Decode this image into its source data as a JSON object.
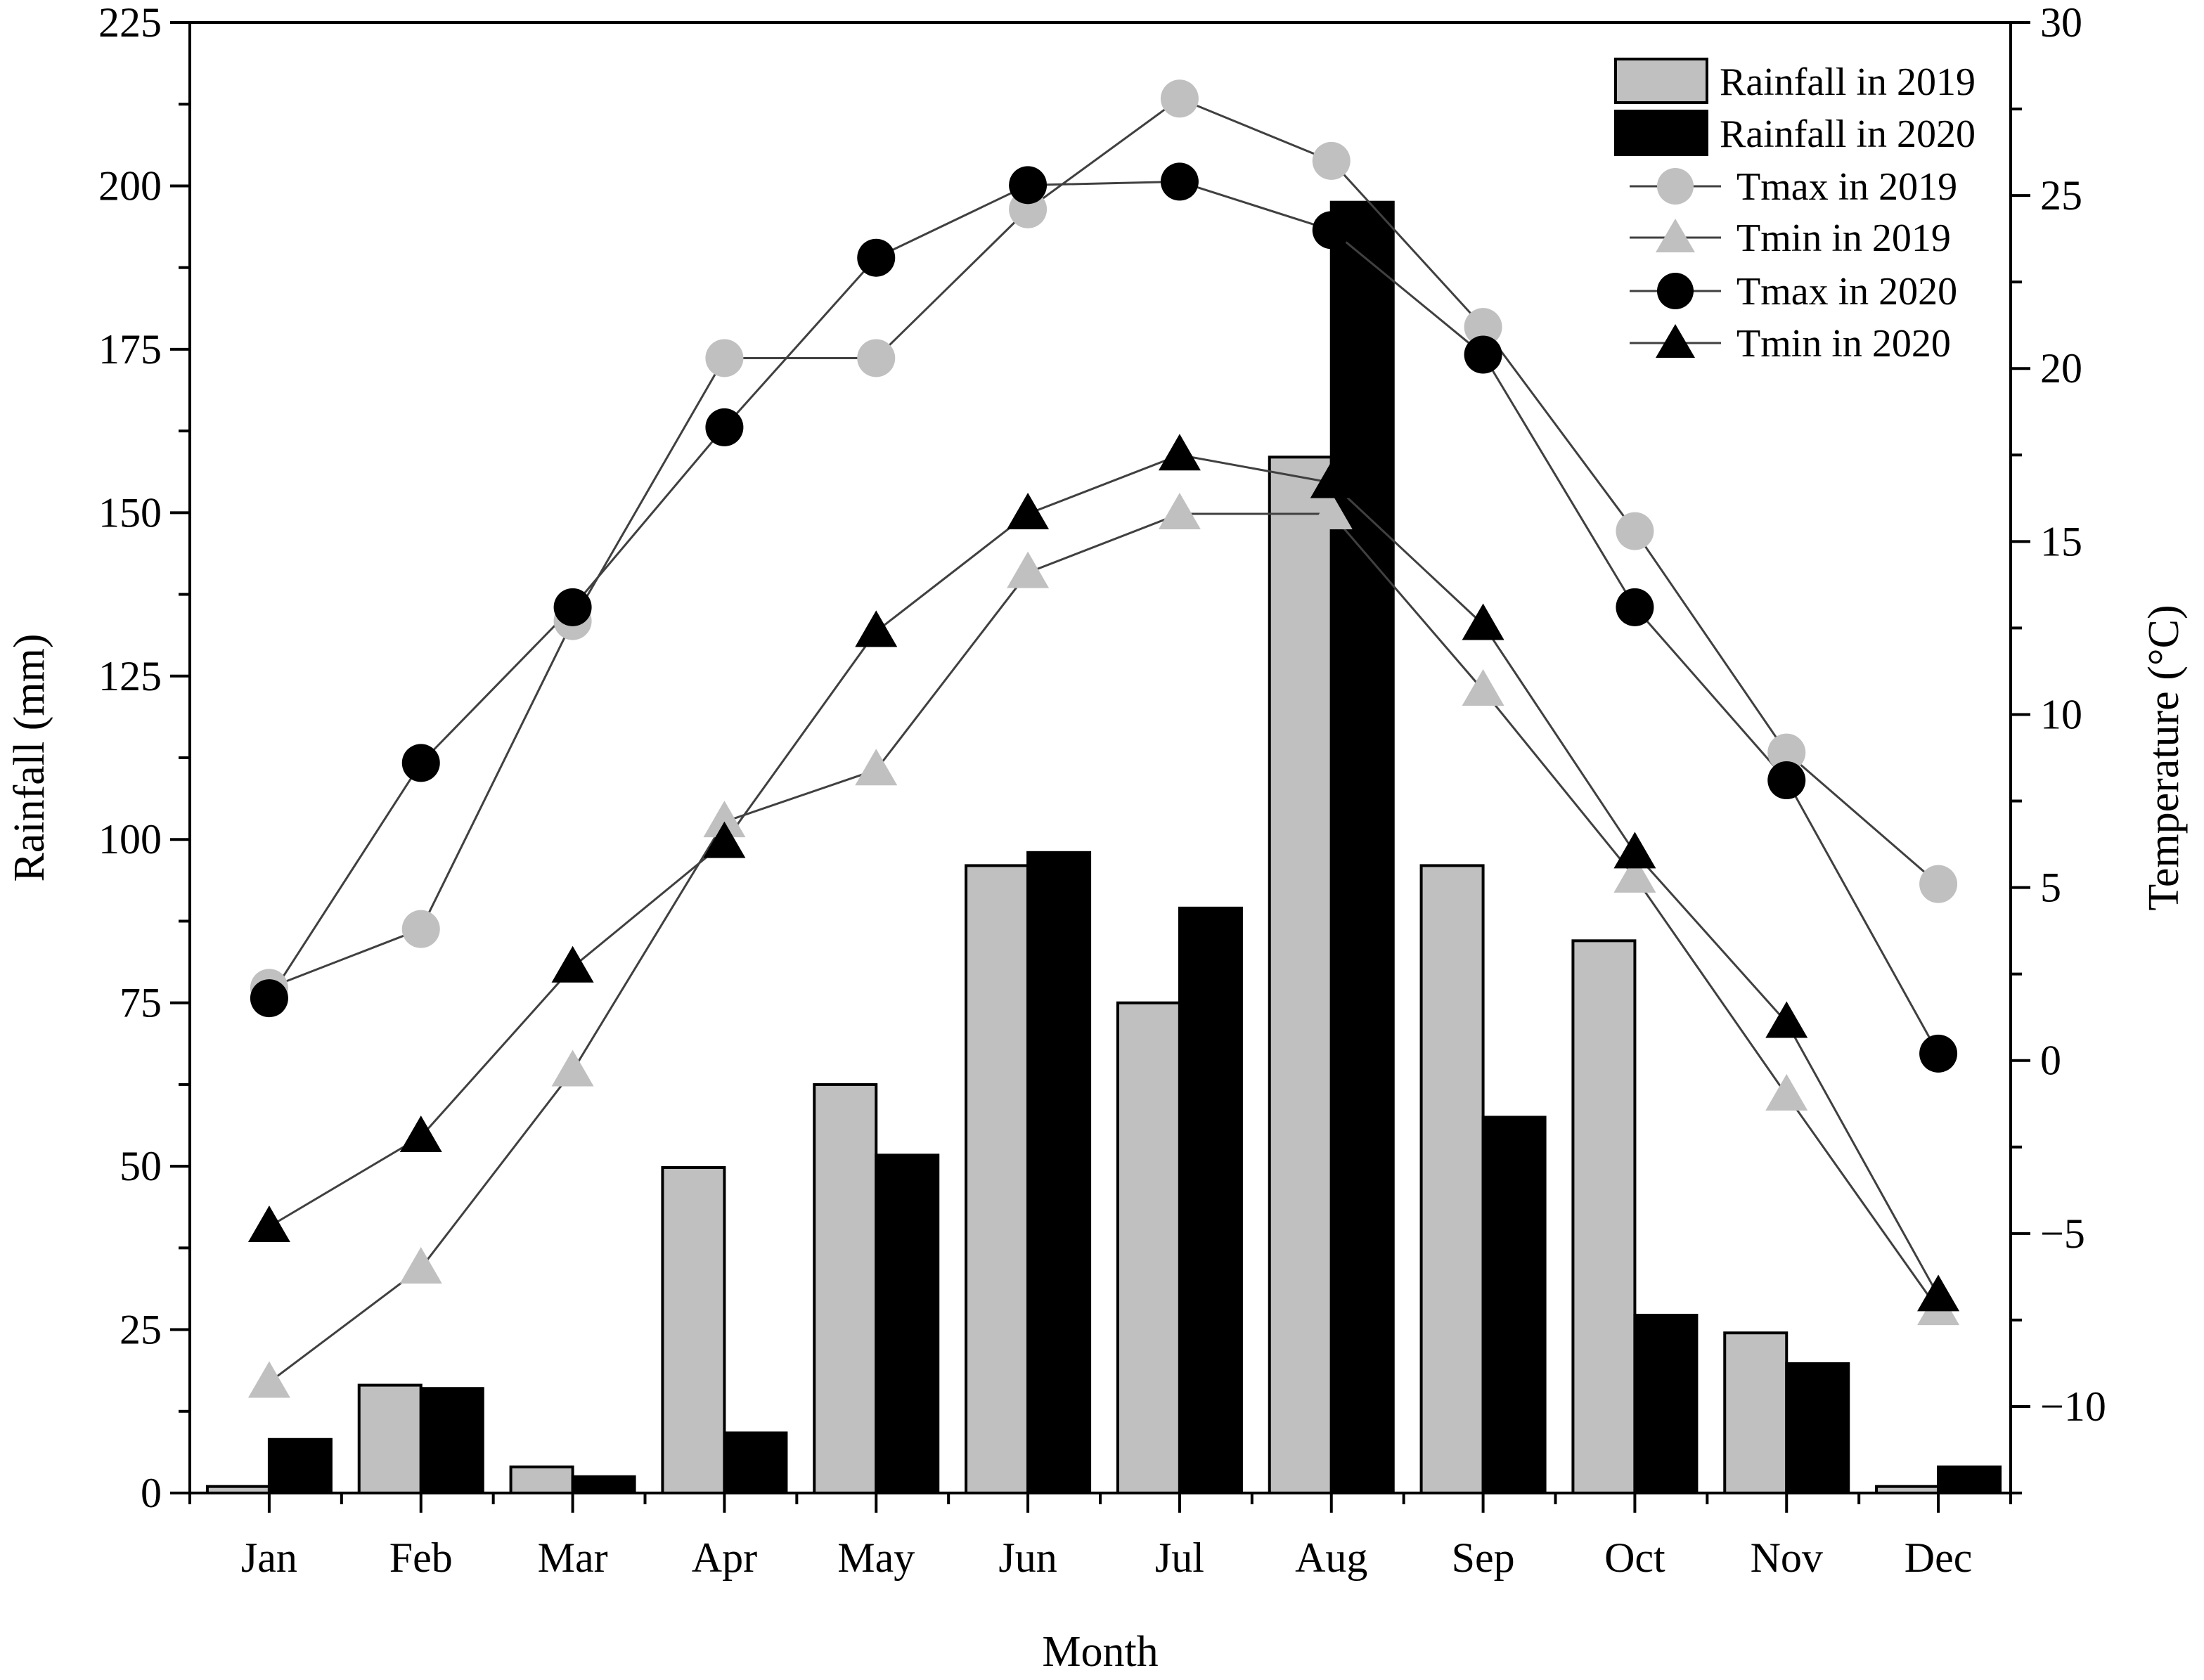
{
  "chart_data": {
    "type": "bar+line",
    "xlabel": "Month",
    "ylabel_left": "Rainfall (mm)",
    "ylabel_right": "Temperature (°C)",
    "categories": [
      "Jan",
      "Feb",
      "Mar",
      "Apr",
      "May",
      "Jun",
      "Jul",
      "Aug",
      "Sep",
      "Oct",
      "Nov",
      "Dec"
    ],
    "ylim_left": [
      0,
      225
    ],
    "yticks_left": [
      0,
      25,
      50,
      75,
      100,
      125,
      150,
      175,
      200,
      225
    ],
    "ylim_right": [
      -12.5,
      30
    ],
    "yticks_right": [
      -10,
      -5,
      0,
      5,
      10,
      15,
      20,
      25,
      30
    ],
    "yticks_right_labels": [
      "−10",
      "−5",
      "0",
      "5",
      "10",
      "15",
      "20",
      "25",
      "30"
    ],
    "bar_series": [
      {
        "name": "Rainfall in 2019",
        "color": "#c0c0c0",
        "values": [
          1,
          16.5,
          4,
          49.8,
          62.5,
          96,
          75,
          158.5,
          96,
          84.5,
          24.5,
          1
        ]
      },
      {
        "name": "Rainfall in 2020",
        "color": "#000000",
        "values": [
          8.2,
          16,
          2.5,
          9.2,
          51.7,
          98,
          89.5,
          197.5,
          57.5,
          27.2,
          19.8,
          4
        ]
      }
    ],
    "line_series": [
      {
        "name": "Tmax in 2019",
        "marker": "circle",
        "color": "#c0c0c0",
        "values": [
          2.1,
          3.8,
          12.7,
          20.3,
          20.3,
          24.6,
          27.8,
          26,
          21.2,
          15.3,
          8.9,
          5.1
        ]
      },
      {
        "name": "Tmin in 2019",
        "marker": "triangle",
        "color": "#c0c0c0",
        "values": [
          -9.3,
          -6,
          -0.3,
          6.9,
          8.4,
          14.1,
          15.8,
          15.8,
          10.7,
          5.3,
          -1.0,
          -7.2
        ]
      },
      {
        "name": "Tmax in 2020",
        "marker": "circle",
        "color": "#000000",
        "values": [
          1.8,
          8.6,
          13.1,
          18.3,
          23.2,
          25.3,
          25.4,
          24.0,
          20.4,
          13.1,
          8.1,
          0.2
        ]
      },
      {
        "name": "Tmin in 2020",
        "marker": "triangle",
        "color": "#000000",
        "values": [
          -4.8,
          -2.2,
          2.7,
          6.3,
          12.4,
          15.8,
          17.5,
          16.7,
          12.6,
          6.0,
          1.1,
          -6.8
        ]
      }
    ],
    "legend_position": "top-right"
  },
  "colors": {
    "line": "#404040",
    "axis": "#000000",
    "bar2019": "#c0c0c0",
    "bar2020": "#000000",
    "marker2019": "#c0c0c0",
    "marker2020": "#000000"
  }
}
